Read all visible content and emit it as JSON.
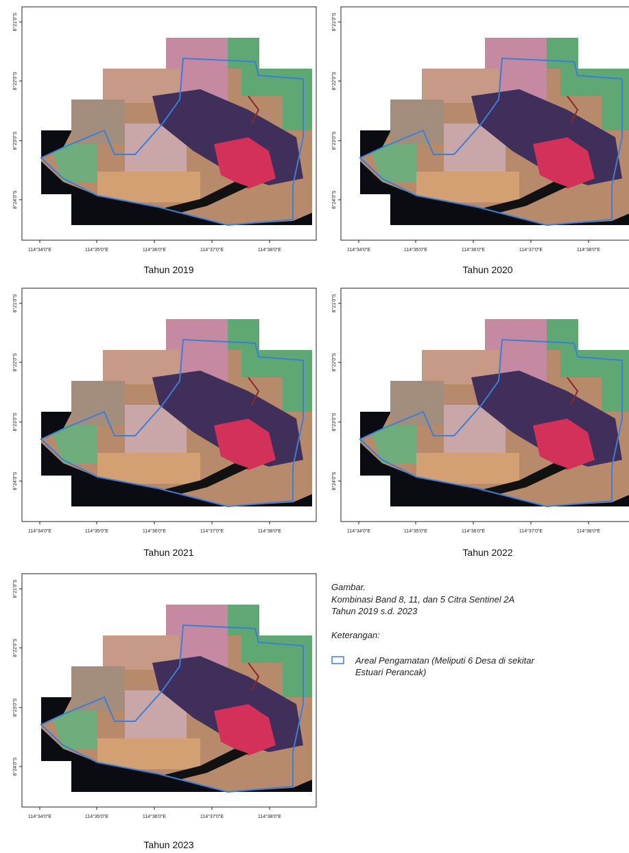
{
  "axes": {
    "lat_labels": [
      "8°21'0\"S",
      "8°22'0\"S",
      "8°23'0\"S",
      "8°24'0\"S"
    ],
    "lon_labels": [
      "114°34'0\"E",
      "114°35'0\"E",
      "114°36'0\"E",
      "114°37'0\"E",
      "114°38'0\"E"
    ]
  },
  "panels": [
    {
      "caption": "Tahun 2019"
    },
    {
      "caption": "Tahun 2020"
    },
    {
      "caption": "Tahun 2021"
    },
    {
      "caption": "Tahun 2022"
    },
    {
      "caption": "Tahun 2023"
    }
  ],
  "legend": {
    "heading": "Gambar.",
    "title_lines": [
      "Kombinasi Band 8, 11, dan 5 Citra Sentinel 2A",
      "Tahun 2019 s.d. 2023"
    ],
    "keterangan": "Keterangan:",
    "item_lines": [
      "Areal Pengamatan (Meliputi 6 Desa di sekitar",
      "Estuari Perancak)"
    ]
  }
}
